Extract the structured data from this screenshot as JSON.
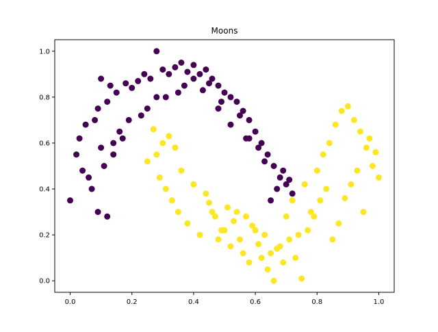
{
  "chart_data": {
    "type": "scatter",
    "title": "Moons",
    "xlabel": "",
    "ylabel": "",
    "xlim": [
      -0.05,
      1.05
    ],
    "ylim": [
      -0.05,
      1.05
    ],
    "x_ticks": [
      "0.0",
      "0.2",
      "0.4",
      "0.6",
      "0.8",
      "1.0"
    ],
    "y_ticks": [
      "0.0",
      "0.2",
      "0.4",
      "0.6",
      "0.8",
      "1.0"
    ],
    "grid": false,
    "legend": "none",
    "series": [
      {
        "color": "#440154",
        "x": [
          0.0,
          0.02,
          0.03,
          0.05,
          0.06,
          0.07,
          0.08,
          0.09,
          0.1,
          0.11,
          0.12,
          0.13,
          0.14,
          0.15,
          0.16,
          0.18,
          0.2,
          0.22,
          0.24,
          0.26,
          0.28,
          0.3,
          0.32,
          0.34,
          0.36,
          0.38,
          0.4,
          0.42,
          0.44,
          0.46,
          0.48,
          0.5,
          0.52,
          0.54,
          0.56,
          0.58,
          0.6,
          0.62,
          0.64,
          0.66,
          0.68,
          0.7,
          0.72,
          0.04,
          0.09,
          0.14,
          0.19,
          0.25,
          0.31,
          0.37,
          0.43,
          0.49,
          0.55,
          0.61,
          0.67,
          0.12,
          0.28,
          0.35,
          0.45,
          0.52,
          0.58,
          0.63,
          0.69,
          0.71,
          0.1,
          0.17,
          0.23,
          0.4,
          0.48,
          0.57,
          0.65
        ],
        "y": [
          0.35,
          0.55,
          0.62,
          0.68,
          0.45,
          0.4,
          0.7,
          0.75,
          0.88,
          0.5,
          0.78,
          0.85,
          0.6,
          0.82,
          0.65,
          0.86,
          0.84,
          0.87,
          0.9,
          0.88,
          1.0,
          0.92,
          0.9,
          0.93,
          0.95,
          0.91,
          0.94,
          0.9,
          0.92,
          0.88,
          0.85,
          0.82,
          0.8,
          0.78,
          0.74,
          0.7,
          0.65,
          0.6,
          0.55,
          0.5,
          0.45,
          0.42,
          0.38,
          0.48,
          0.3,
          0.55,
          0.7,
          0.75,
          0.8,
          0.85,
          0.83,
          0.78,
          0.72,
          0.58,
          0.4,
          0.28,
          0.8,
          0.82,
          0.86,
          0.68,
          0.62,
          0.52,
          0.48,
          0.44,
          0.58,
          0.62,
          0.72,
          0.88,
          0.75,
          0.62,
          0.35
        ]
      },
      {
        "color": "#fde725",
        "x": [
          0.25,
          0.27,
          0.28,
          0.29,
          0.3,
          0.31,
          0.32,
          0.33,
          0.34,
          0.35,
          0.36,
          0.38,
          0.4,
          0.42,
          0.44,
          0.46,
          0.48,
          0.5,
          0.52,
          0.54,
          0.56,
          0.58,
          0.6,
          0.62,
          0.64,
          0.66,
          0.68,
          0.7,
          0.72,
          0.74,
          0.76,
          0.78,
          0.8,
          0.82,
          0.84,
          0.86,
          0.88,
          0.9,
          0.92,
          0.94,
          0.96,
          0.98,
          1.0,
          0.99,
          0.97,
          0.95,
          0.93,
          0.91,
          0.89,
          0.87,
          0.85,
          0.83,
          0.81,
          0.79,
          0.77,
          0.75,
          0.73,
          0.71,
          0.69,
          0.67,
          0.65,
          0.63,
          0.61,
          0.59,
          0.57,
          0.55,
          0.53,
          0.51,
          0.49,
          0.47,
          0.45
        ],
        "y": [
          0.52,
          0.66,
          0.55,
          0.45,
          0.6,
          0.4,
          0.63,
          0.35,
          0.58,
          0.3,
          0.48,
          0.25,
          0.42,
          0.2,
          0.38,
          0.3,
          0.18,
          0.22,
          0.15,
          0.3,
          0.12,
          0.08,
          0.22,
          0.1,
          0.05,
          0.0,
          0.15,
          0.28,
          0.35,
          0.2,
          0.42,
          0.3,
          0.48,
          0.55,
          0.6,
          0.68,
          0.74,
          0.76,
          0.7,
          0.65,
          0.58,
          0.5,
          0.45,
          0.56,
          0.62,
          0.3,
          0.48,
          0.42,
          0.36,
          0.25,
          0.18,
          0.4,
          0.35,
          0.28,
          0.22,
          0.01,
          0.1,
          0.18,
          0.08,
          0.14,
          0.12,
          0.2,
          0.16,
          0.24,
          0.28,
          0.18,
          0.26,
          0.32,
          0.22,
          0.28,
          0.34
        ]
      }
    ]
  }
}
